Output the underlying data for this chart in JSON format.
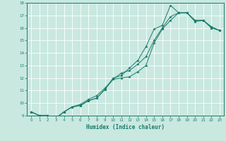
{
  "title": "",
  "xlabel": "Humidex (Indice chaleur)",
  "xlim": [
    -0.5,
    23.5
  ],
  "ylim": [
    9,
    18
  ],
  "yticks": [
    9,
    10,
    11,
    12,
    13,
    14,
    15,
    16,
    17,
    18
  ],
  "xticks": [
    0,
    1,
    2,
    3,
    4,
    5,
    6,
    7,
    8,
    9,
    10,
    11,
    12,
    13,
    14,
    15,
    16,
    17,
    18,
    19,
    20,
    21,
    22,
    23
  ],
  "bg_color": "#c8e8e0",
  "line_color": "#1a7a6a",
  "grid_color": "#ffffff",
  "line1_x": [
    0,
    1,
    2,
    3,
    4,
    5,
    6,
    7,
    8,
    9,
    10,
    11,
    12,
    13,
    14,
    15,
    16,
    17,
    18,
    19,
    20,
    21,
    22,
    23
  ],
  "line1_y": [
    9.3,
    9.0,
    9.0,
    8.8,
    9.3,
    9.7,
    9.8,
    10.2,
    10.4,
    11.1,
    11.9,
    12.0,
    12.1,
    12.5,
    13.0,
    14.8,
    15.9,
    16.6,
    17.2,
    17.2,
    16.5,
    16.6,
    16.0,
    15.8
  ],
  "line2_x": [
    0,
    1,
    2,
    3,
    4,
    5,
    6,
    7,
    8,
    9,
    10,
    11,
    12,
    13,
    14,
    15,
    16,
    17,
    18,
    19,
    20,
    21,
    22,
    23
  ],
  "line2_y": [
    9.3,
    9.0,
    9.0,
    8.8,
    9.3,
    9.7,
    9.8,
    10.2,
    10.4,
    11.1,
    12.0,
    12.2,
    12.8,
    13.4,
    14.5,
    15.9,
    16.2,
    17.8,
    17.2,
    17.2,
    16.6,
    16.6,
    16.0,
    15.8
  ],
  "line3_x": [
    0,
    1,
    2,
    3,
    4,
    5,
    6,
    7,
    8,
    9,
    10,
    11,
    12,
    13,
    14,
    15,
    16,
    17,
    18,
    19,
    20,
    21,
    22,
    23
  ],
  "line3_y": [
    9.3,
    9.0,
    9.0,
    8.8,
    9.3,
    9.7,
    9.9,
    10.3,
    10.6,
    11.2,
    11.9,
    12.4,
    12.6,
    13.1,
    13.7,
    15.0,
    16.0,
    16.9,
    17.2,
    17.2,
    16.6,
    16.6,
    16.1,
    15.8
  ]
}
